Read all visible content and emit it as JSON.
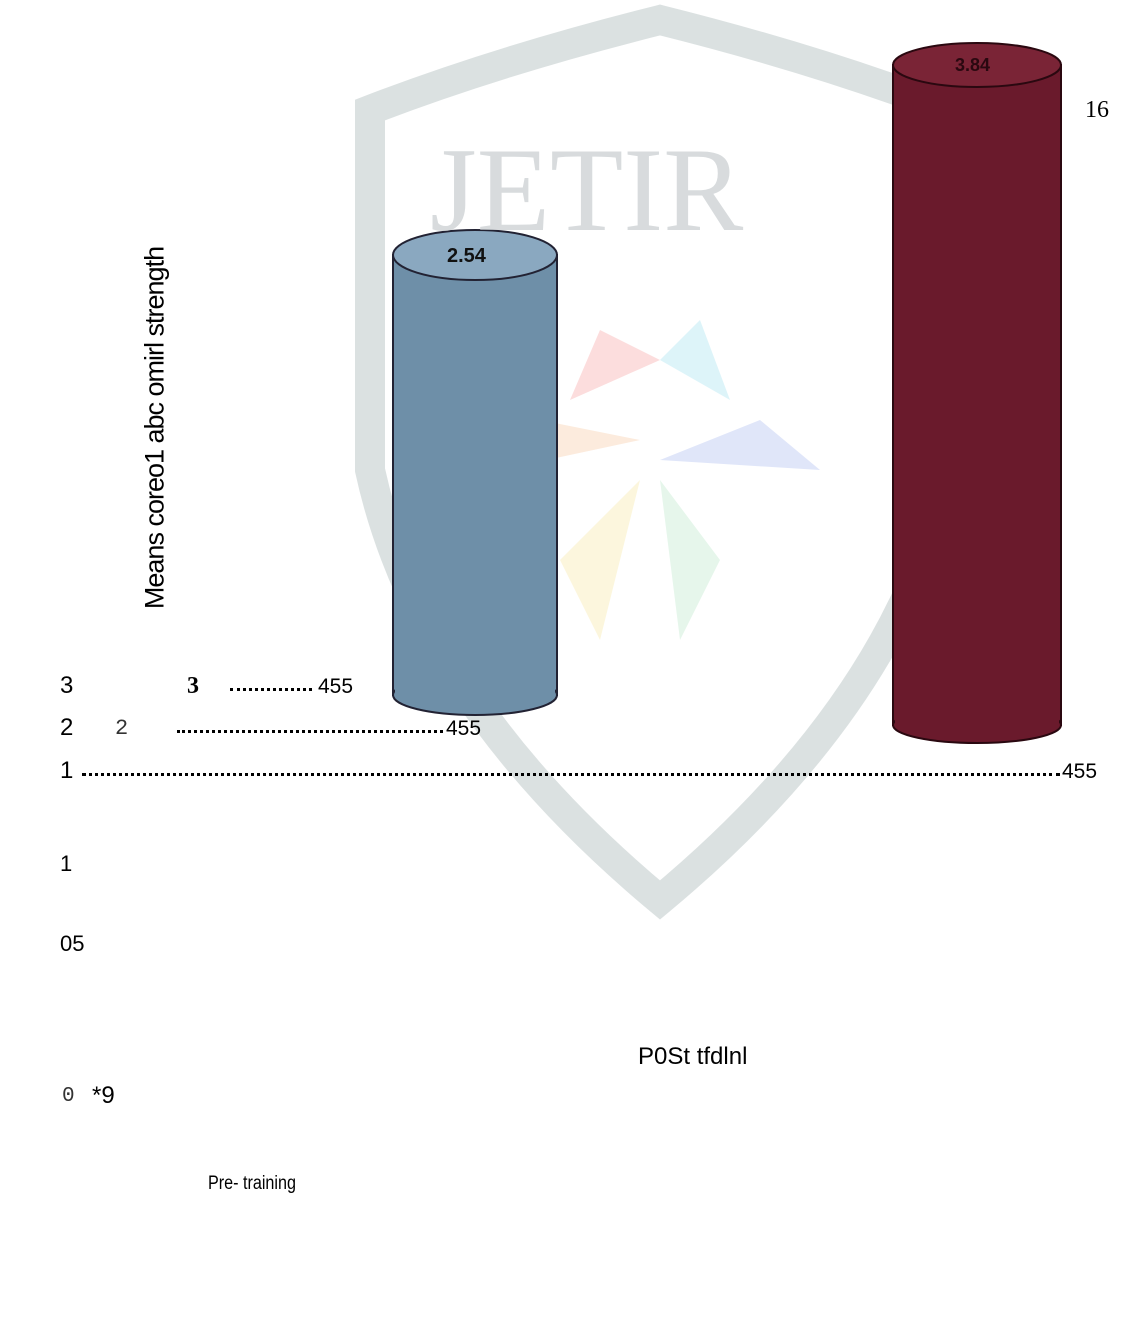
{
  "watermark": "JETIR",
  "page_number": "16",
  "figure": {
    "y_axis_label": "Means coreo1 abc omirl strength",
    "bar_labels": [
      "2.54",
      "3.84"
    ],
    "rows": [
      {
        "left": "3",
        "mid": "3",
        "end": "455"
      },
      {
        "left": "2",
        "mid": "2",
        "end": "455"
      },
      {
        "left": "1",
        "end": "455"
      }
    ],
    "stray": {
      "a": "1",
      "b": "05",
      "c": "P0St tfdlnl",
      "d": "0",
      "e": "*9",
      "f": "Pre- training"
    }
  }
}
